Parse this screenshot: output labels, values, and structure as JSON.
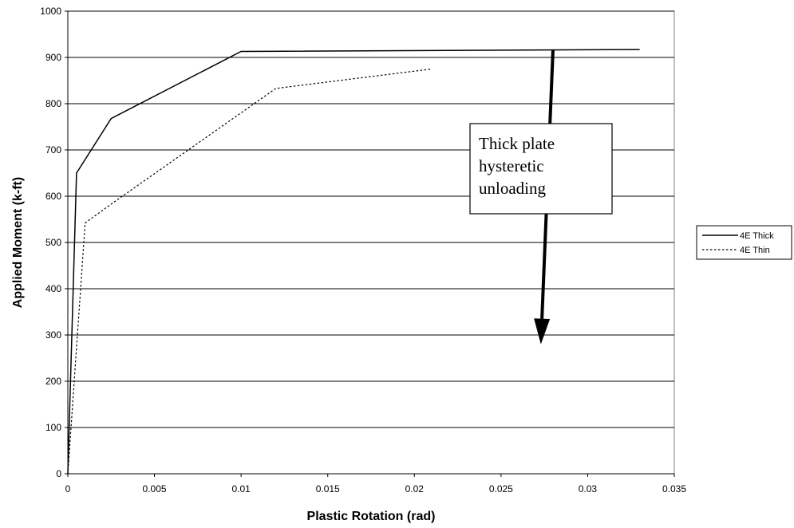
{
  "chart_data": {
    "type": "line",
    "title": "",
    "xlabel": "Plastic Rotation (rad)",
    "ylabel": "Applied Moment (k-ft)",
    "xlim": [
      0,
      0.035
    ],
    "ylim": [
      0,
      1000
    ],
    "xticks": [
      "0",
      "0.005",
      "0.01",
      "0.015",
      "0.02",
      "0.025",
      "0.03",
      "0.035"
    ],
    "yticks": [
      "0",
      "100",
      "200",
      "300",
      "400",
      "500",
      "600",
      "700",
      "800",
      "900",
      "1000"
    ],
    "grid": "horizontal",
    "legend_position": "right",
    "series": [
      {
        "name": "4E Thick",
        "style": "solid",
        "color": "#000000",
        "x": [
          0,
          0.0005,
          0.0025,
          0.01,
          0.033
        ],
        "y": [
          0,
          650,
          768,
          913,
          917
        ]
      },
      {
        "name": "4E Thin",
        "style": "dotted",
        "color": "#000000",
        "x": [
          0,
          0.001,
          0.0025,
          0.012,
          0.021
        ],
        "y": [
          0,
          542,
          583,
          833,
          875
        ]
      }
    ],
    "annotation": {
      "text_lines": [
        "Thick plate",
        "hysteretic",
        "unloading"
      ],
      "arrow_from": [
        0.028,
        917
      ],
      "arrow_to": [
        0.0273,
        280
      ]
    }
  }
}
